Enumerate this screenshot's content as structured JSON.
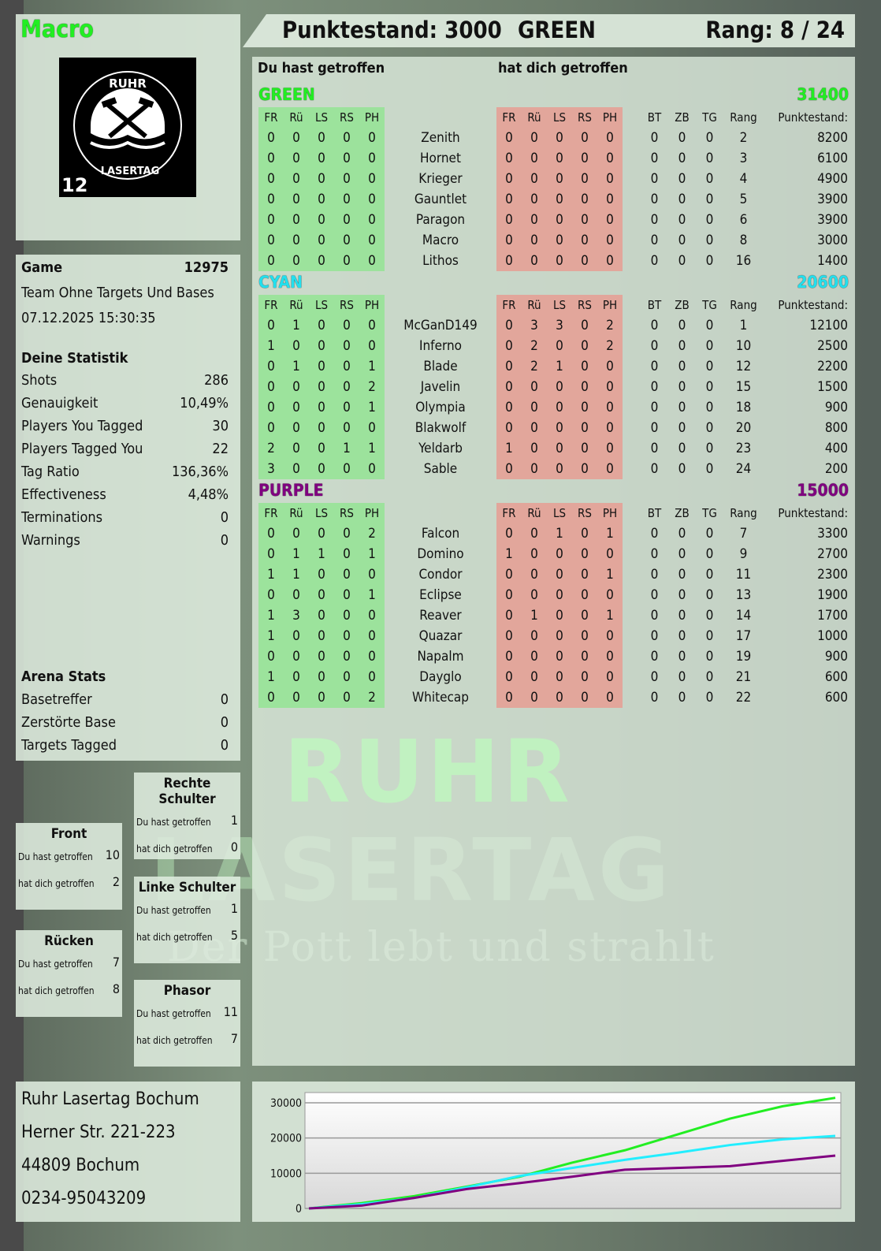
{
  "player_name": "Macro",
  "logo": {
    "text_top": "RUHR",
    "text_bottom": "LASERTAG",
    "number": "12"
  },
  "header": {
    "score_label": "Punktestand: 3000",
    "team": "GREEN",
    "rank_label": "Rang: 8 / 24"
  },
  "game": {
    "label": "Game",
    "id": "12975",
    "mode": "Team Ohne Targets Und Bases",
    "datetime": "07.12.2025 15:30:35"
  },
  "stats": {
    "title": "Deine Statistik",
    "items": [
      {
        "label": "Shots",
        "value": "286"
      },
      {
        "label": "Genauigkeit",
        "value": "10,49%"
      },
      {
        "label": "Players You Tagged",
        "value": "30"
      },
      {
        "label": "Players Tagged You",
        "value": "22"
      },
      {
        "label": "Tag Ratio",
        "value": "136,36%"
      },
      {
        "label": "Effectiveness",
        "value": "4,48%"
      },
      {
        "label": "Terminations",
        "value": "0"
      },
      {
        "label": "Warnings",
        "value": "0"
      }
    ]
  },
  "arena": {
    "title": "Arena Stats",
    "items": [
      {
        "label": "Basetreffer",
        "value": "0"
      },
      {
        "label": "Zerstörte Base",
        "value": "0"
      },
      {
        "label": "Targets Tagged",
        "value": "0"
      }
    ]
  },
  "body_parts": [
    {
      "name": "Rechte Schulter",
      "given_label": "Du hast getroffen",
      "given": "1",
      "received_label": "hat dich getroffen",
      "received": "0"
    },
    {
      "name": "Front",
      "given_label": "Du hast getroffen",
      "given": "10",
      "received_label": "hat dich getroffen",
      "received": "2"
    },
    {
      "name": "Linke Schulter",
      "given_label": "Du hast getroffen",
      "given": "1",
      "received_label": "hat dich getroffen",
      "received": "5"
    },
    {
      "name": "Rücken",
      "given_label": "Du hast getroffen",
      "given": "7",
      "received_label": "hat dich getroffen",
      "received": "8"
    },
    {
      "name": "Phasor",
      "given_label": "Du hast getroffen",
      "given": "11",
      "received_label": "hat dich getroffen",
      "received": "7"
    }
  ],
  "address": [
    "Ruhr Lasertag Bochum",
    "Herner Str. 221-223",
    "44809 Bochum",
    "0234-95043209"
  ],
  "table": {
    "given_title": "Du hast getroffen",
    "received_title": "hat dich getroffen",
    "hit_cols": [
      "FR",
      "Rü",
      "LS",
      "RS",
      "PH"
    ],
    "extra_cols": [
      "BT",
      "ZB",
      "TG",
      "Rang",
      "Punktestand:"
    ],
    "teams": [
      {
        "name": "GREEN",
        "score": "31400",
        "color": "#22ee22",
        "players": [
          {
            "n": "Zenith",
            "g": [
              0,
              0,
              0,
              0,
              0
            ],
            "r": [
              0,
              0,
              0,
              0,
              0
            ],
            "e": [
              0,
              0,
              0,
              2,
              8200
            ]
          },
          {
            "n": "Hornet",
            "g": [
              0,
              0,
              0,
              0,
              0
            ],
            "r": [
              0,
              0,
              0,
              0,
              0
            ],
            "e": [
              0,
              0,
              0,
              3,
              6100
            ]
          },
          {
            "n": "Krieger",
            "g": [
              0,
              0,
              0,
              0,
              0
            ],
            "r": [
              0,
              0,
              0,
              0,
              0
            ],
            "e": [
              0,
              0,
              0,
              4,
              4900
            ]
          },
          {
            "n": "Gauntlet",
            "g": [
              0,
              0,
              0,
              0,
              0
            ],
            "r": [
              0,
              0,
              0,
              0,
              0
            ],
            "e": [
              0,
              0,
              0,
              5,
              3900
            ]
          },
          {
            "n": "Paragon",
            "g": [
              0,
              0,
              0,
              0,
              0
            ],
            "r": [
              0,
              0,
              0,
              0,
              0
            ],
            "e": [
              0,
              0,
              0,
              6,
              3900
            ]
          },
          {
            "n": "Macro",
            "g": [
              0,
              0,
              0,
              0,
              0
            ],
            "r": [
              0,
              0,
              0,
              0,
              0
            ],
            "e": [
              0,
              0,
              0,
              8,
              3000
            ]
          },
          {
            "n": "Lithos",
            "g": [
              0,
              0,
              0,
              0,
              0
            ],
            "r": [
              0,
              0,
              0,
              0,
              0
            ],
            "e": [
              0,
              0,
              0,
              16,
              1400
            ]
          }
        ]
      },
      {
        "name": "CYAN",
        "score": "20600",
        "color": "#22e0ee",
        "players": [
          {
            "n": "McGanD149",
            "g": [
              0,
              1,
              0,
              0,
              0
            ],
            "r": [
              0,
              3,
              3,
              0,
              2
            ],
            "e": [
              0,
              0,
              0,
              1,
              12100
            ]
          },
          {
            "n": "Inferno",
            "g": [
              1,
              0,
              0,
              0,
              0
            ],
            "r": [
              0,
              2,
              0,
              0,
              2
            ],
            "e": [
              0,
              0,
              0,
              10,
              2500
            ]
          },
          {
            "n": "Blade",
            "g": [
              0,
              1,
              0,
              0,
              1
            ],
            "r": [
              0,
              2,
              1,
              0,
              0
            ],
            "e": [
              0,
              0,
              0,
              12,
              2200
            ]
          },
          {
            "n": "Javelin",
            "g": [
              0,
              0,
              0,
              0,
              2
            ],
            "r": [
              0,
              0,
              0,
              0,
              0
            ],
            "e": [
              0,
              0,
              0,
              15,
              1500
            ]
          },
          {
            "n": "Olympia",
            "g": [
              0,
              0,
              0,
              0,
              1
            ],
            "r": [
              0,
              0,
              0,
              0,
              0
            ],
            "e": [
              0,
              0,
              0,
              18,
              900
            ]
          },
          {
            "n": "Blakwolf",
            "g": [
              0,
              0,
              0,
              0,
              0
            ],
            "r": [
              0,
              0,
              0,
              0,
              0
            ],
            "e": [
              0,
              0,
              0,
              20,
              800
            ]
          },
          {
            "n": "Yeldarb",
            "g": [
              2,
              0,
              0,
              1,
              1
            ],
            "r": [
              1,
              0,
              0,
              0,
              0
            ],
            "e": [
              0,
              0,
              0,
              23,
              400
            ]
          },
          {
            "n": "Sable",
            "g": [
              3,
              0,
              0,
              0,
              0
            ],
            "r": [
              0,
              0,
              0,
              0,
              0
            ],
            "e": [
              0,
              0,
              0,
              24,
              200
            ]
          }
        ]
      },
      {
        "name": "PURPLE",
        "score": "15000",
        "color": "#800080",
        "players": [
          {
            "n": "Falcon",
            "g": [
              0,
              0,
              0,
              0,
              2
            ],
            "r": [
              0,
              0,
              1,
              0,
              1
            ],
            "e": [
              0,
              0,
              0,
              7,
              3300
            ]
          },
          {
            "n": "Domino",
            "g": [
              0,
              1,
              1,
              0,
              1
            ],
            "r": [
              1,
              0,
              0,
              0,
              0
            ],
            "e": [
              0,
              0,
              0,
              9,
              2700
            ]
          },
          {
            "n": "Condor",
            "g": [
              1,
              1,
              0,
              0,
              0
            ],
            "r": [
              0,
              0,
              0,
              0,
              1
            ],
            "e": [
              0,
              0,
              0,
              11,
              2300
            ]
          },
          {
            "n": "Eclipse",
            "g": [
              0,
              0,
              0,
              0,
              1
            ],
            "r": [
              0,
              0,
              0,
              0,
              0
            ],
            "e": [
              0,
              0,
              0,
              13,
              1900
            ]
          },
          {
            "n": "Reaver",
            "g": [
              1,
              3,
              0,
              0,
              0
            ],
            "r": [
              0,
              1,
              0,
              0,
              1
            ],
            "e": [
              0,
              0,
              0,
              14,
              1700
            ]
          },
          {
            "n": "Quazar",
            "g": [
              1,
              0,
              0,
              0,
              0
            ],
            "r": [
              0,
              0,
              0,
              0,
              0
            ],
            "e": [
              0,
              0,
              0,
              17,
              1000
            ]
          },
          {
            "n": "Napalm",
            "g": [
              0,
              0,
              0,
              0,
              0
            ],
            "r": [
              0,
              0,
              0,
              0,
              0
            ],
            "e": [
              0,
              0,
              0,
              19,
              900
            ]
          },
          {
            "n": "Dayglo",
            "g": [
              1,
              0,
              0,
              0,
              0
            ],
            "r": [
              0,
              0,
              0,
              0,
              0
            ],
            "e": [
              0,
              0,
              0,
              21,
              600
            ]
          },
          {
            "n": "Whitecap",
            "g": [
              0,
              0,
              0,
              0,
              2
            ],
            "r": [
              0,
              0,
              0,
              0,
              0
            ],
            "e": [
              0,
              0,
              0,
              22,
              600
            ]
          }
        ]
      }
    ]
  },
  "watermark": {
    "line1": "RUHR",
    "line2": "LASERTAG",
    "slogan": "Der Pott lebt und strahlt"
  },
  "chart_data": {
    "type": "line",
    "ylim": [
      0,
      32000
    ],
    "yticks": [
      "30000",
      "20000",
      "10000",
      "0"
    ],
    "grid": true,
    "x": [
      0,
      0.1,
      0.2,
      0.3,
      0.4,
      0.5,
      0.6,
      0.7,
      0.8,
      0.9,
      1
    ],
    "series": [
      {
        "color": "#22ee22",
        "values": [
          0,
          1500,
          3500,
          6200,
          9000,
          13000,
          16500,
          21000,
          25500,
          29000,
          31400
        ]
      },
      {
        "color": "#22eeff",
        "values": [
          0,
          1200,
          3000,
          6000,
          9200,
          11500,
          13800,
          15800,
          18000,
          19600,
          20600
        ]
      },
      {
        "color": "#800080",
        "values": [
          0,
          800,
          3000,
          5500,
          7200,
          9000,
          11000,
          11500,
          12000,
          13500,
          15000
        ]
      }
    ]
  }
}
